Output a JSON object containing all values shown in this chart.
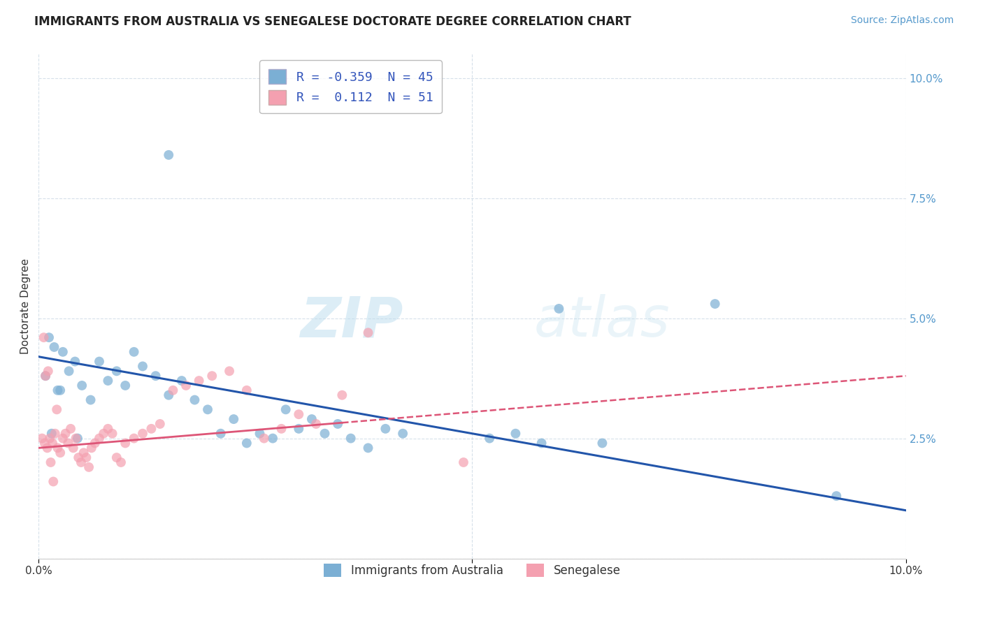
{
  "title": "IMMIGRANTS FROM AUSTRALIA VS SENEGALESE DOCTORATE DEGREE CORRELATION CHART",
  "source": "Source: ZipAtlas.com",
  "ylabel": "Doctorate Degree",
  "xlim": [
    0.0,
    10.0
  ],
  "ylim": [
    0.0,
    10.5
  ],
  "legend_blue_r": "-0.359",
  "legend_blue_n": "45",
  "legend_pink_r": "0.112",
  "legend_pink_n": "51",
  "legend_label_blue": "Immigrants from Australia",
  "legend_label_pink": "Senegalese",
  "blue_color": "#7BAFD4",
  "pink_color": "#F4A0B0",
  "blue_line_color": "#2255AA",
  "pink_line_color": "#DD5577",
  "background_color": "#FFFFFF",
  "blue_line_x0": 0.0,
  "blue_line_y0": 4.2,
  "blue_line_x1": 10.0,
  "blue_line_y1": 1.0,
  "pink_line_x0": 0.0,
  "pink_line_y0": 2.3,
  "pink_line_x1": 10.0,
  "pink_line_y1": 3.8,
  "pink_solid_xmax": 3.5,
  "blue_scatter_x": [
    0.08,
    0.12,
    0.18,
    0.22,
    0.28,
    0.35,
    0.42,
    0.5,
    0.6,
    0.7,
    0.8,
    0.9,
    1.0,
    1.1,
    1.2,
    1.35,
    1.5,
    1.65,
    1.8,
    1.95,
    2.1,
    2.25,
    2.4,
    2.55,
    2.7,
    2.85,
    3.0,
    3.15,
    3.3,
    3.45,
    3.6,
    3.8,
    4.0,
    4.2,
    5.2,
    5.5,
    5.8,
    6.0,
    6.5,
    7.8,
    9.2,
    0.15,
    0.25,
    0.45,
    1.5
  ],
  "blue_scatter_y": [
    3.8,
    4.6,
    4.4,
    3.5,
    4.3,
    3.9,
    4.1,
    3.6,
    3.3,
    4.1,
    3.7,
    3.9,
    3.6,
    4.3,
    4.0,
    3.8,
    3.4,
    3.7,
    3.3,
    3.1,
    2.6,
    2.9,
    2.4,
    2.6,
    2.5,
    3.1,
    2.7,
    2.9,
    2.6,
    2.8,
    2.5,
    2.3,
    2.7,
    2.6,
    2.5,
    2.6,
    2.4,
    5.2,
    2.4,
    5.3,
    1.3,
    2.6,
    3.5,
    2.5,
    8.4
  ],
  "pink_scatter_x": [
    0.04,
    0.07,
    0.1,
    0.13,
    0.16,
    0.19,
    0.22,
    0.25,
    0.28,
    0.31,
    0.34,
    0.37,
    0.4,
    0.43,
    0.46,
    0.49,
    0.52,
    0.55,
    0.58,
    0.61,
    0.65,
    0.7,
    0.75,
    0.8,
    0.85,
    0.9,
    0.95,
    1.0,
    1.1,
    1.2,
    1.3,
    1.4,
    1.55,
    1.7,
    1.85,
    2.0,
    2.2,
    2.4,
    2.6,
    2.8,
    3.0,
    3.2,
    3.5,
    0.06,
    0.08,
    0.11,
    0.14,
    0.17,
    0.21,
    3.8,
    4.9
  ],
  "pink_scatter_y": [
    2.5,
    2.4,
    2.3,
    2.5,
    2.4,
    2.6,
    2.3,
    2.2,
    2.5,
    2.6,
    2.4,
    2.7,
    2.3,
    2.5,
    2.1,
    2.0,
    2.2,
    2.1,
    1.9,
    2.3,
    2.4,
    2.5,
    2.6,
    2.7,
    2.6,
    2.1,
    2.0,
    2.4,
    2.5,
    2.6,
    2.7,
    2.8,
    3.5,
    3.6,
    3.7,
    3.8,
    3.9,
    3.5,
    2.5,
    2.7,
    3.0,
    2.8,
    3.4,
    4.6,
    3.8,
    3.9,
    2.0,
    1.6,
    3.1,
    4.7,
    2.0
  ],
  "title_fontsize": 12,
  "axis_label_fontsize": 11,
  "tick_fontsize": 11,
  "source_fontsize": 10,
  "scatter_size": 100
}
